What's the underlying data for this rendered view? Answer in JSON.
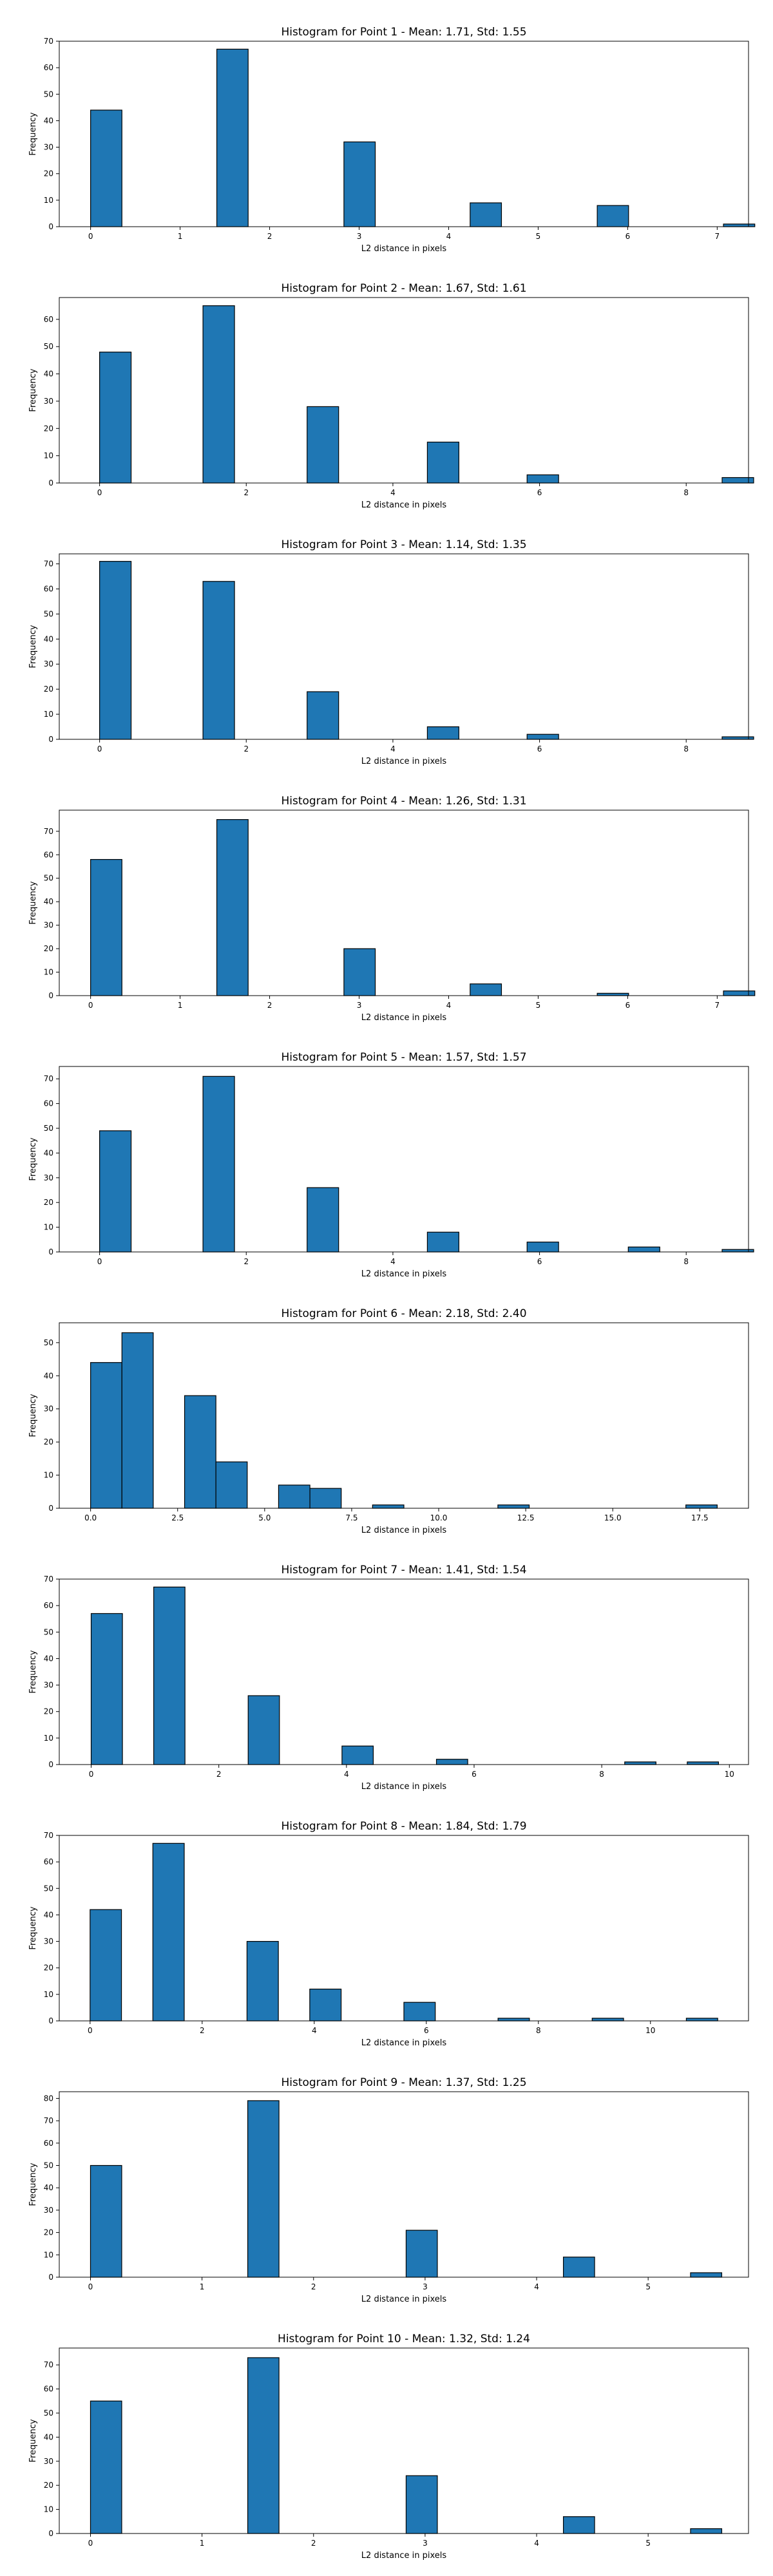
{
  "chart_data": [
    {
      "type": "bar",
      "title": "Histogram for Point 1 - Mean: 1.71, Std: 1.55",
      "xlabel": "L2 distance in pixels",
      "ylabel": "Frequency",
      "xlim": [
        -0.35,
        7.35
      ],
      "ylim": [
        0,
        70
      ],
      "xticks": [
        0,
        1,
        2,
        3,
        4,
        5,
        6,
        7
      ],
      "xtick_labels": [
        "0",
        "1",
        "2",
        "3",
        "4",
        "5",
        "6",
        "7"
      ],
      "yticks": [
        0,
        10,
        20,
        30,
        40,
        50,
        60,
        70
      ],
      "bin_width": 0.35,
      "bins": [
        {
          "x": 0.0,
          "value": 44
        },
        {
          "x": 1.41,
          "value": 67
        },
        {
          "x": 2.83,
          "value": 32
        },
        {
          "x": 4.24,
          "value": 9
        },
        {
          "x": 5.66,
          "value": 8
        },
        {
          "x": 7.07,
          "value": 1
        }
      ]
    },
    {
      "type": "bar",
      "title": "Histogram for Point 2 - Mean: 1.67, Std: 1.61",
      "xlabel": "L2 distance in pixels",
      "ylabel": "Frequency",
      "xlim": [
        -0.55,
        8.85
      ],
      "ylim": [
        0,
        68
      ],
      "xticks": [
        0,
        2,
        4,
        6,
        8
      ],
      "xtick_labels": [
        "0",
        "2",
        "4",
        "6",
        "8"
      ],
      "yticks": [
        0,
        10,
        20,
        30,
        40,
        50,
        60
      ],
      "bin_width": 0.43,
      "bins": [
        {
          "x": 0.0,
          "value": 48
        },
        {
          "x": 1.41,
          "value": 65
        },
        {
          "x": 2.83,
          "value": 28
        },
        {
          "x": 4.47,
          "value": 15
        },
        {
          "x": 5.83,
          "value": 3
        },
        {
          "x": 8.49,
          "value": 2
        }
      ]
    },
    {
      "type": "bar",
      "title": "Histogram for Point 3 - Mean: 1.14, Std: 1.35",
      "xlabel": "L2 distance in pixels",
      "ylabel": "Frequency",
      "xlim": [
        -0.55,
        8.85
      ],
      "ylim": [
        0,
        74
      ],
      "xticks": [
        0,
        2,
        4,
        6,
        8
      ],
      "xtick_labels": [
        "0",
        "2",
        "4",
        "6",
        "8"
      ],
      "yticks": [
        0,
        10,
        20,
        30,
        40,
        50,
        60,
        70
      ],
      "bin_width": 0.43,
      "bins": [
        {
          "x": 0.0,
          "value": 71
        },
        {
          "x": 1.41,
          "value": 63
        },
        {
          "x": 2.83,
          "value": 19
        },
        {
          "x": 4.47,
          "value": 5
        },
        {
          "x": 5.83,
          "value": 2
        },
        {
          "x": 8.49,
          "value": 1
        }
      ]
    },
    {
      "type": "bar",
      "title": "Histogram for Point 4 - Mean: 1.26, Std: 1.31",
      "xlabel": "L2 distance in pixels",
      "ylabel": "Frequency",
      "xlim": [
        -0.35,
        7.35
      ],
      "ylim": [
        0,
        79
      ],
      "xticks": [
        0,
        1,
        2,
        3,
        4,
        5,
        6,
        7
      ],
      "xtick_labels": [
        "0",
        "1",
        "2",
        "3",
        "4",
        "5",
        "6",
        "7"
      ],
      "yticks": [
        0,
        10,
        20,
        30,
        40,
        50,
        60,
        70
      ],
      "bin_width": 0.35,
      "bins": [
        {
          "x": 0.0,
          "value": 58
        },
        {
          "x": 1.41,
          "value": 75
        },
        {
          "x": 2.83,
          "value": 20
        },
        {
          "x": 4.24,
          "value": 5
        },
        {
          "x": 5.66,
          "value": 1
        },
        {
          "x": 7.07,
          "value": 2
        }
      ]
    },
    {
      "type": "bar",
      "title": "Histogram for Point 5 - Mean: 1.57, Std: 1.57",
      "xlabel": "L2 distance in pixels",
      "ylabel": "Frequency",
      "xlim": [
        -0.55,
        8.85
      ],
      "ylim": [
        0,
        75
      ],
      "xticks": [
        0,
        2,
        4,
        6,
        8
      ],
      "xtick_labels": [
        "0",
        "2",
        "4",
        "6",
        "8"
      ],
      "yticks": [
        0,
        10,
        20,
        30,
        40,
        50,
        60,
        70
      ],
      "bin_width": 0.43,
      "bins": [
        {
          "x": 0.0,
          "value": 49
        },
        {
          "x": 1.41,
          "value": 71
        },
        {
          "x": 2.83,
          "value": 26
        },
        {
          "x": 4.47,
          "value": 8
        },
        {
          "x": 5.83,
          "value": 4
        },
        {
          "x": 7.21,
          "value": 2
        },
        {
          "x": 8.49,
          "value": 1
        }
      ]
    },
    {
      "type": "bar",
      "title": "Histogram for Point 6 - Mean: 2.18, Std: 2.40",
      "xlabel": "L2 distance in pixels",
      "ylabel": "Frequency",
      "xlim": [
        -0.9,
        18.9
      ],
      "ylim": [
        0,
        56
      ],
      "xticks": [
        0,
        2.5,
        5,
        7.5,
        10,
        12.5,
        15,
        17.5
      ],
      "xtick_labels": [
        "0.0",
        "2.5",
        "5.0",
        "7.5",
        "10.0",
        "12.5",
        "15.0",
        "17.5"
      ],
      "yticks": [
        0,
        10,
        20,
        30,
        40,
        50
      ],
      "bin_width": 0.9,
      "bins": [
        {
          "x": 0.0,
          "value": 44
        },
        {
          "x": 0.9,
          "value": 53
        },
        {
          "x": 2.7,
          "value": 34
        },
        {
          "x": 3.6,
          "value": 14
        },
        {
          "x": 5.4,
          "value": 7
        },
        {
          "x": 6.3,
          "value": 6
        },
        {
          "x": 8.1,
          "value": 1
        },
        {
          "x": 11.7,
          "value": 1
        },
        {
          "x": 17.1,
          "value": 1
        }
      ]
    },
    {
      "type": "bar",
      "title": "Histogram for Point 7 - Mean: 1.41, Std: 1.54",
      "xlabel": "L2 distance in pixels",
      "ylabel": "Frequency",
      "xlim": [
        -0.5,
        10.3
      ],
      "ylim": [
        0,
        70
      ],
      "xticks": [
        0,
        2,
        4,
        6,
        8,
        10
      ],
      "xtick_labels": [
        "0",
        "2",
        "4",
        "6",
        "8",
        "10"
      ],
      "yticks": [
        0,
        10,
        20,
        30,
        40,
        50,
        60,
        70
      ],
      "bin_width": 0.49,
      "bins": [
        {
          "x": 0.0,
          "value": 57
        },
        {
          "x": 0.98,
          "value": 67
        },
        {
          "x": 2.46,
          "value": 26
        },
        {
          "x": 3.93,
          "value": 7
        },
        {
          "x": 5.41,
          "value": 2
        },
        {
          "x": 8.36,
          "value": 1
        },
        {
          "x": 9.34,
          "value": 1
        }
      ]
    },
    {
      "type": "bar",
      "title": "Histogram for Point 8 - Mean: 1.84, Std: 1.79",
      "xlabel": "L2 distance in pixels",
      "ylabel": "Frequency",
      "xlim": [
        -0.55,
        11.75
      ],
      "ylim": [
        0,
        70
      ],
      "xticks": [
        0,
        2,
        4,
        6,
        8,
        10
      ],
      "xtick_labels": [
        "0",
        "2",
        "4",
        "6",
        "8",
        "10"
      ],
      "yticks": [
        0,
        10,
        20,
        30,
        40,
        50,
        60,
        70
      ],
      "bin_width": 0.56,
      "bins": [
        {
          "x": 0.0,
          "value": 42
        },
        {
          "x": 1.12,
          "value": 67
        },
        {
          "x": 2.8,
          "value": 30
        },
        {
          "x": 3.92,
          "value": 12
        },
        {
          "x": 5.6,
          "value": 7
        },
        {
          "x": 7.28,
          "value": 1
        },
        {
          "x": 8.96,
          "value": 1
        },
        {
          "x": 10.64,
          "value": 1
        }
      ]
    },
    {
      "type": "bar",
      "title": "Histogram for Point 9 - Mean: 1.37, Std: 1.25",
      "xlabel": "L2 distance in pixels",
      "ylabel": "Frequency",
      "xlim": [
        -0.28,
        5.9
      ],
      "ylim": [
        0,
        83
      ],
      "xticks": [
        0,
        1,
        2,
        3,
        4,
        5
      ],
      "xtick_labels": [
        "0",
        "1",
        "2",
        "3",
        "4",
        "5"
      ],
      "yticks": [
        0,
        10,
        20,
        30,
        40,
        50,
        60,
        70,
        80
      ],
      "bin_width": 0.28,
      "bins": [
        {
          "x": 0.0,
          "value": 50
        },
        {
          "x": 1.41,
          "value": 79
        },
        {
          "x": 2.83,
          "value": 21
        },
        {
          "x": 4.24,
          "value": 9
        },
        {
          "x": 5.38,
          "value": 2
        }
      ]
    },
    {
      "type": "bar",
      "title": "Histogram for Point 10 - Mean: 1.32, Std: 1.24",
      "xlabel": "L2 distance in pixels",
      "ylabel": "Frequency",
      "xlim": [
        -0.28,
        5.9
      ],
      "ylim": [
        0,
        77
      ],
      "xticks": [
        0,
        1,
        2,
        3,
        4,
        5
      ],
      "xtick_labels": [
        "0",
        "1",
        "2",
        "3",
        "4",
        "5"
      ],
      "yticks": [
        0,
        10,
        20,
        30,
        40,
        50,
        60,
        70
      ],
      "bin_width": 0.28,
      "bins": [
        {
          "x": 0.0,
          "value": 55
        },
        {
          "x": 1.41,
          "value": 73
        },
        {
          "x": 2.83,
          "value": 24
        },
        {
          "x": 4.24,
          "value": 7
        },
        {
          "x": 5.38,
          "value": 2
        }
      ]
    }
  ]
}
